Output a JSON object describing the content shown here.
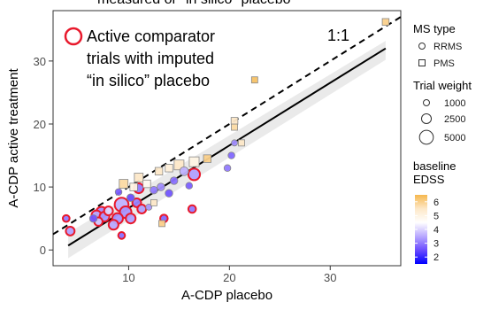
{
  "header": {
    "cut_text": "measured or \"in silico\" placebo"
  },
  "chart_data": {
    "type": "scatter",
    "xlabel": "A-CDP placebo",
    "ylabel": "A-CDP active treatment",
    "xlim": [
      2.5,
      37
    ],
    "ylim": [
      -2.5,
      38
    ],
    "x_ticks": [
      10,
      20,
      30
    ],
    "y_ticks": [
      0,
      10,
      20,
      30
    ],
    "reference_line": {
      "label": "1:1",
      "style": "dashed",
      "slope": 1,
      "intercept": 0
    },
    "regression_line": {
      "style": "solid",
      "x": [
        4,
        35.5
      ],
      "y": [
        0.7,
        32
      ],
      "ci_band": true
    },
    "annotation": {
      "text_lines": [
        "Active comparator",
        "trials with imputed",
        "“in silico” placebo"
      ],
      "marker_color": "#e8192c"
    },
    "legend": {
      "shape_title": "MS type",
      "shape_items": [
        {
          "label": "RRMS",
          "shape": "circle"
        },
        {
          "label": "PMS",
          "shape": "square"
        }
      ],
      "size_title": "Trial weight",
      "size_items": [
        {
          "label": "1000",
          "value": 1000
        },
        {
          "label": "2500",
          "value": 2500
        },
        {
          "label": "5000",
          "value": 5000
        }
      ],
      "color_title_lines": [
        "baseline",
        "EDSS"
      ],
      "color_ticks": [
        2,
        3,
        4,
        5,
        6
      ],
      "color_range": [
        1.5,
        6.5
      ],
      "color_stops": [
        "#0000ff",
        "#6a4cff",
        "#b9a9ff",
        "#ffffff",
        "#fde8c8",
        "#f6b84e"
      ],
      "position": "right"
    },
    "points": [
      {
        "x": 3.8,
        "y": 5.0,
        "type": "RRMS",
        "weight": 1200,
        "edss": 3.0,
        "active_comparator": true
      },
      {
        "x": 4.2,
        "y": 3.0,
        "type": "RRMS",
        "weight": 2000,
        "edss": 3.4,
        "active_comparator": true
      },
      {
        "x": 6.5,
        "y": 5.0,
        "type": "RRMS",
        "weight": 1500,
        "edss": 2.6,
        "active_comparator": false
      },
      {
        "x": 6.8,
        "y": 5.5,
        "type": "RRMS",
        "weight": 2500,
        "edss": 3.5,
        "active_comparator": true
      },
      {
        "x": 7.0,
        "y": 4.5,
        "type": "RRMS",
        "weight": 1800,
        "edss": 3.8,
        "active_comparator": true
      },
      {
        "x": 7.3,
        "y": 6.0,
        "type": "RRMS",
        "weight": 3000,
        "edss": 3.2,
        "active_comparator": true
      },
      {
        "x": 7.6,
        "y": 5.3,
        "type": "RRMS",
        "weight": 2500,
        "edss": 3.3,
        "active_comparator": true
      },
      {
        "x": 8.0,
        "y": 6.2,
        "type": "RRMS",
        "weight": 2000,
        "edss": 4.0,
        "active_comparator": true
      },
      {
        "x": 8.5,
        "y": 4.0,
        "type": "RRMS",
        "weight": 2500,
        "edss": 3.5,
        "active_comparator": true
      },
      {
        "x": 8.9,
        "y": 5.0,
        "type": "RRMS",
        "weight": 3000,
        "edss": 3.3,
        "active_comparator": true
      },
      {
        "x": 9.3,
        "y": 7.2,
        "type": "RRMS",
        "weight": 5000,
        "edss": 3.6,
        "active_comparator": true
      },
      {
        "x": 9.7,
        "y": 6.0,
        "type": "RRMS",
        "weight": 3500,
        "edss": 3.3,
        "active_comparator": true
      },
      {
        "x": 10.2,
        "y": 5.0,
        "type": "RRMS",
        "weight": 2500,
        "edss": 3.4,
        "active_comparator": true
      },
      {
        "x": 10.8,
        "y": 7.5,
        "type": "RRMS",
        "weight": 2000,
        "edss": 3.1,
        "active_comparator": true
      },
      {
        "x": 11.3,
        "y": 6.5,
        "type": "RRMS",
        "weight": 2000,
        "edss": 3.4,
        "active_comparator": true
      },
      {
        "x": 11.0,
        "y": 9.8,
        "type": "RRMS",
        "weight": 2500,
        "edss": 3.0,
        "active_comparator": true
      },
      {
        "x": 10.2,
        "y": 8.3,
        "type": "RRMS",
        "weight": 1500,
        "edss": 2.5,
        "active_comparator": false
      },
      {
        "x": 9.3,
        "y": 2.3,
        "type": "RRMS",
        "weight": 1200,
        "edss": 2.9,
        "active_comparator": true
      },
      {
        "x": 9.0,
        "y": 9.2,
        "type": "RRMS",
        "weight": 1200,
        "edss": 2.7,
        "active_comparator": false
      },
      {
        "x": 12.5,
        "y": 9.5,
        "type": "RRMS",
        "weight": 1500,
        "edss": 3.0,
        "active_comparator": false
      },
      {
        "x": 13.2,
        "y": 10.0,
        "type": "RRMS",
        "weight": 1500,
        "edss": 3.2,
        "active_comparator": false
      },
      {
        "x": 12.0,
        "y": 6.8,
        "type": "RRMS",
        "weight": 1000,
        "edss": 3.3,
        "active_comparator": false
      },
      {
        "x": 13.5,
        "y": 5.0,
        "type": "RRMS",
        "weight": 1500,
        "edss": 2.8,
        "active_comparator": true
      },
      {
        "x": 14.0,
        "y": 9.0,
        "type": "RRMS",
        "weight": 1500,
        "edss": 2.6,
        "active_comparator": false
      },
      {
        "x": 14.5,
        "y": 11.0,
        "type": "RRMS",
        "weight": 1500,
        "edss": 2.9,
        "active_comparator": false
      },
      {
        "x": 15.5,
        "y": 12.5,
        "type": "RRMS",
        "weight": 2000,
        "edss": 3.6,
        "active_comparator": false
      },
      {
        "x": 16.5,
        "y": 12.0,
        "type": "RRMS",
        "weight": 3500,
        "edss": 3.4,
        "active_comparator": true
      },
      {
        "x": 16.3,
        "y": 6.5,
        "type": "RRMS",
        "weight": 1500,
        "edss": 3.0,
        "active_comparator": true
      },
      {
        "x": 16.0,
        "y": 10.2,
        "type": "RRMS",
        "weight": 1200,
        "edss": 2.7,
        "active_comparator": false
      },
      {
        "x": 19.8,
        "y": 13.0,
        "type": "RRMS",
        "weight": 1200,
        "edss": 3.0,
        "active_comparator": false
      },
      {
        "x": 20.2,
        "y": 15.0,
        "type": "RRMS",
        "weight": 1200,
        "edss": 2.8,
        "active_comparator": false
      },
      {
        "x": 20.5,
        "y": 17.0,
        "type": "RRMS",
        "weight": 1000,
        "edss": 3.2,
        "active_comparator": false
      },
      {
        "x": 11.0,
        "y": 11.5,
        "type": "PMS",
        "weight": 2000,
        "edss": 5.5,
        "active_comparator": false
      },
      {
        "x": 9.5,
        "y": 10.5,
        "type": "PMS",
        "weight": 2000,
        "edss": 5.8,
        "active_comparator": false
      },
      {
        "x": 10.5,
        "y": 10.0,
        "type": "PMS",
        "weight": 1500,
        "edss": 5.0,
        "active_comparator": false
      },
      {
        "x": 11.8,
        "y": 10.5,
        "type": "PMS",
        "weight": 1500,
        "edss": 4.8,
        "active_comparator": false
      },
      {
        "x": 13.0,
        "y": 12.5,
        "type": "PMS",
        "weight": 1500,
        "edss": 5.5,
        "active_comparator": false
      },
      {
        "x": 14.0,
        "y": 13.0,
        "type": "PMS",
        "weight": 1500,
        "edss": 5.2,
        "active_comparator": false
      },
      {
        "x": 15.0,
        "y": 13.5,
        "type": "PMS",
        "weight": 2500,
        "edss": 5.5,
        "active_comparator": false
      },
      {
        "x": 16.5,
        "y": 14.0,
        "type": "PMS",
        "weight": 2500,
        "edss": 5.0,
        "active_comparator": false
      },
      {
        "x": 17.8,
        "y": 14.5,
        "type": "PMS",
        "weight": 1500,
        "edss": 6.0,
        "active_comparator": false
      },
      {
        "x": 12.5,
        "y": 7.5,
        "type": "PMS",
        "weight": 1000,
        "edss": 5.5,
        "active_comparator": false
      },
      {
        "x": 13.3,
        "y": 4.2,
        "type": "PMS",
        "weight": 1000,
        "edss": 6.0,
        "active_comparator": false
      },
      {
        "x": 20.5,
        "y": 20.5,
        "type": "PMS",
        "weight": 1200,
        "edss": 5.5,
        "active_comparator": false
      },
      {
        "x": 20.5,
        "y": 19.5,
        "type": "PMS",
        "weight": 1000,
        "edss": 5.8,
        "active_comparator": false
      },
      {
        "x": 21.2,
        "y": 17.0,
        "type": "PMS",
        "weight": 1000,
        "edss": 5.5,
        "active_comparator": false
      },
      {
        "x": 22.5,
        "y": 27.0,
        "type": "PMS",
        "weight": 1000,
        "edss": 6.3,
        "active_comparator": false
      },
      {
        "x": 35.5,
        "y": 36.2,
        "type": "PMS",
        "weight": 1200,
        "edss": 6.0,
        "active_comparator": false
      }
    ]
  }
}
